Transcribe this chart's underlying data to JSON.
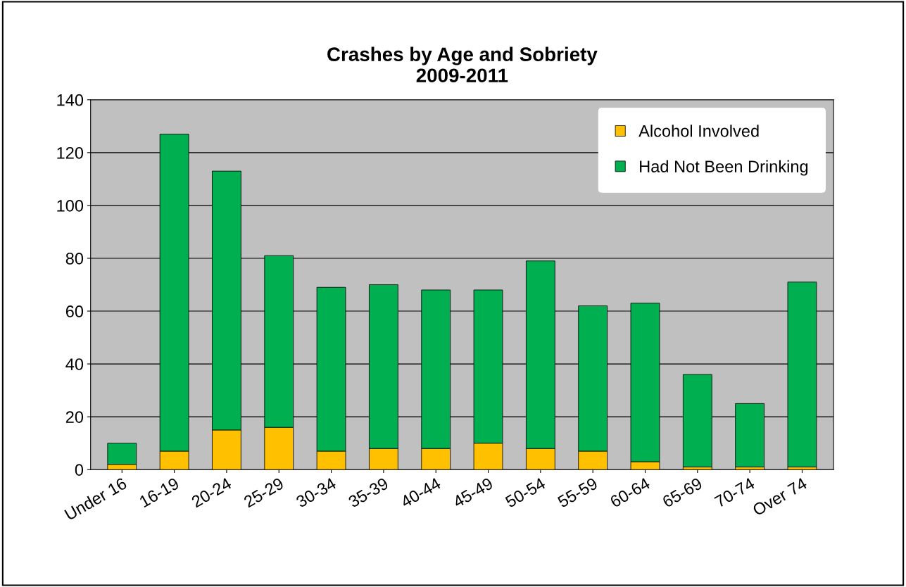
{
  "chart_data": {
    "type": "bar",
    "title": "Crashes by Age and Sobriety\n2009-2011",
    "stacked": true,
    "categories": [
      "Under 16",
      "16-19",
      "20-24",
      "25-29",
      "30-34",
      "35-39",
      "40-44",
      "45-49",
      "50-54",
      "55-59",
      "60-64",
      "65-69",
      "70-74",
      "Over 74"
    ],
    "series": [
      {
        "name": "Alcohol Involved",
        "color": "#ffc000",
        "values": [
          2,
          7,
          15,
          16,
          7,
          8,
          8,
          10,
          8,
          7,
          3,
          1,
          1,
          1
        ]
      },
      {
        "name": "Had Not Been Drinking",
        "color": "#00b050",
        "values": [
          8,
          120,
          98,
          65,
          62,
          62,
          60,
          58,
          71,
          55,
          60,
          35,
          24,
          70
        ]
      }
    ],
    "ylim": [
      0,
      140
    ],
    "yticks": [
      0,
      20,
      40,
      60,
      80,
      100,
      120,
      140
    ],
    "grid": "y",
    "legend": "top right"
  }
}
